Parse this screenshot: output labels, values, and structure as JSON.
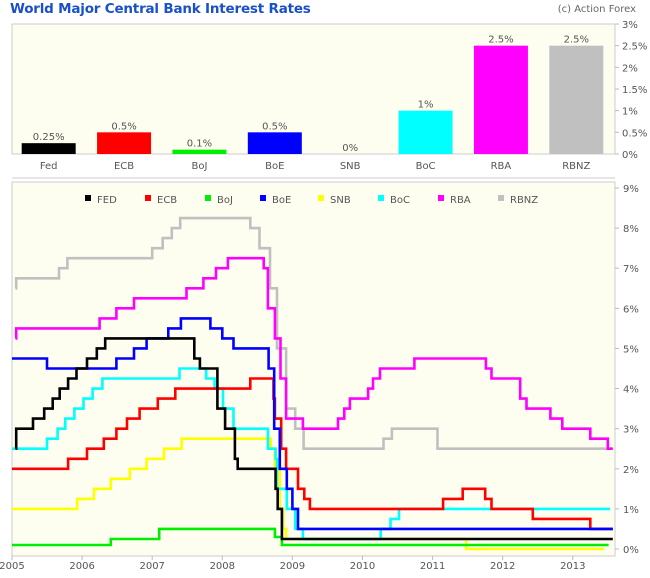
{
  "header": {
    "title": "World Major Central Bank Interest Rates",
    "credit": "(c) Action Forex"
  },
  "chart_data": [
    {
      "type": "bar",
      "title": "Current rates",
      "categories": [
        "Fed",
        "ECB",
        "BoJ",
        "BoE",
        "SNB",
        "BoC",
        "RBA",
        "RBNZ"
      ],
      "values": [
        0.25,
        0.5,
        0.1,
        0.5,
        0,
        1,
        2.5,
        2.5
      ],
      "data_labels": [
        "0.25%",
        "0.5%",
        "0.1%",
        "0.5%",
        "0%",
        "1%",
        "2.5%",
        "2.5%"
      ],
      "colors": [
        "#000000",
        "#ff0000",
        "#00ee00",
        "#0000ff",
        "#ffff00",
        "#00ffff",
        "#ff00ff",
        "#c0c0c0"
      ],
      "ylim": [
        0,
        3
      ],
      "yticks": [
        0,
        0.5,
        1,
        1.5,
        2,
        2.5,
        3
      ],
      "ytick_labels": [
        "0%",
        "0.5%",
        "1%",
        "1.5%",
        "2%",
        "2.5%",
        "3%"
      ],
      "axis_side": "right",
      "grid": false
    },
    {
      "type": "line",
      "step": true,
      "xlim": [
        2005,
        2013.9
      ],
      "ylim": [
        0,
        9
      ],
      "xticks": [
        2005,
        2006,
        2007,
        2008,
        2009,
        2010,
        2011,
        2012,
        2013
      ],
      "xtick_labels": [
        "2005",
        "2006",
        "2007",
        "2008",
        "2009",
        "2010",
        "2011",
        "2012",
        "2013"
      ],
      "yticks": [
        0,
        1,
        2,
        3,
        4,
        5,
        6,
        7,
        8,
        9
      ],
      "ytick_labels": [
        "0%",
        "1%",
        "2%",
        "3%",
        "4%",
        "5%",
        "6%",
        "7%",
        "8%",
        "9%"
      ],
      "legend_position": "top-center",
      "grid": false,
      "series": [
        {
          "name": "FED",
          "color": "#000000",
          "points": [
            [
              2005.05,
              2.5
            ],
            [
              2005.06,
              3.0
            ],
            [
              2005.3,
              3.25
            ],
            [
              2005.46,
              3.5
            ],
            [
              2005.58,
              3.75
            ],
            [
              2005.68,
              4.0
            ],
            [
              2005.8,
              4.25
            ],
            [
              2005.92,
              4.5
            ],
            [
              2006.07,
              4.75
            ],
            [
              2006.21,
              5.0
            ],
            [
              2006.33,
              5.25
            ],
            [
              2007.6,
              4.75
            ],
            [
              2007.68,
              4.5
            ],
            [
              2007.93,
              3.5
            ],
            [
              2008.04,
              3.0
            ],
            [
              2008.18,
              2.25
            ],
            [
              2008.22,
              2.0
            ],
            [
              2008.76,
              1.5
            ],
            [
              2008.79,
              1.0
            ],
            [
              2008.85,
              0.25
            ],
            [
              2013.57,
              0.25
            ]
          ]
        },
        {
          "name": "ECB",
          "color": "#ff0000",
          "points": [
            [
              2005.0,
              2.0
            ],
            [
              2005.8,
              2.25
            ],
            [
              2006.07,
              2.5
            ],
            [
              2006.31,
              2.75
            ],
            [
              2006.49,
              3.0
            ],
            [
              2006.64,
              3.25
            ],
            [
              2006.82,
              3.5
            ],
            [
              2007.08,
              3.75
            ],
            [
              2007.33,
              4.0
            ],
            [
              2008.4,
              4.25
            ],
            [
              2008.73,
              3.75
            ],
            [
              2008.75,
              3.25
            ],
            [
              2008.84,
              2.5
            ],
            [
              2008.91,
              2.0
            ],
            [
              2009.08,
              1.5
            ],
            [
              2009.17,
              1.25
            ],
            [
              2009.25,
              1.0
            ],
            [
              2011.15,
              1.25
            ],
            [
              2011.43,
              1.5
            ],
            [
              2011.75,
              1.25
            ],
            [
              2011.84,
              1.0
            ],
            [
              2012.43,
              0.75
            ],
            [
              2013.25,
              0.5
            ],
            [
              2013.57,
              0.5
            ]
          ]
        },
        {
          "name": "BoJ",
          "color": "#00ee00",
          "points": [
            [
              2005.0,
              0.1
            ],
            [
              2006.41,
              0.25
            ],
            [
              2007.1,
              0.5
            ],
            [
              2008.75,
              0.3
            ],
            [
              2008.85,
              0.1
            ],
            [
              2013.51,
              0.1
            ]
          ]
        },
        {
          "name": "BoE",
          "color": "#0000ff",
          "points": [
            [
              2005.0,
              4.75
            ],
            [
              2005.5,
              4.5
            ],
            [
              2006.49,
              4.75
            ],
            [
              2006.74,
              5.0
            ],
            [
              2006.92,
              5.25
            ],
            [
              2007.23,
              5.5
            ],
            [
              2007.41,
              5.75
            ],
            [
              2007.83,
              5.5
            ],
            [
              2008.0,
              5.25
            ],
            [
              2008.16,
              5.0
            ],
            [
              2008.66,
              4.5
            ],
            [
              2008.74,
              3.0
            ],
            [
              2008.82,
              2.0
            ],
            [
              2008.92,
              1.5
            ],
            [
              2009.0,
              1.0
            ],
            [
              2009.08,
              0.5
            ],
            [
              2013.57,
              0.5
            ]
          ]
        },
        {
          "name": "SNB",
          "color": "#ffff00",
          "points": [
            [
              2005.0,
              1.0
            ],
            [
              2005.93,
              1.25
            ],
            [
              2006.17,
              1.5
            ],
            [
              2006.41,
              1.75
            ],
            [
              2006.68,
              2.0
            ],
            [
              2006.92,
              2.25
            ],
            [
              2007.17,
              2.5
            ],
            [
              2007.42,
              2.75
            ],
            [
              2008.69,
              2.5
            ],
            [
              2008.75,
              2.0
            ],
            [
              2008.82,
              1.0
            ],
            [
              2008.87,
              0.5
            ],
            [
              2008.91,
              0.25
            ],
            [
              2011.48,
              0.0
            ],
            [
              2013.45,
              0.0
            ]
          ]
        },
        {
          "name": "BoC",
          "color": "#00ffff",
          "points": [
            [
              2005.0,
              2.5
            ],
            [
              2005.5,
              2.75
            ],
            [
              2005.65,
              3.0
            ],
            [
              2005.76,
              3.25
            ],
            [
              2005.89,
              3.5
            ],
            [
              2006.02,
              3.75
            ],
            [
              2006.15,
              4.0
            ],
            [
              2006.29,
              4.25
            ],
            [
              2007.39,
              4.5
            ],
            [
              2007.77,
              4.25
            ],
            [
              2007.89,
              4.0
            ],
            [
              2008.01,
              3.5
            ],
            [
              2008.16,
              3.0
            ],
            [
              2008.65,
              2.5
            ],
            [
              2008.76,
              2.25
            ],
            [
              2008.78,
              1.5
            ],
            [
              2008.92,
              1.0
            ],
            [
              2009.04,
              0.5
            ],
            [
              2009.15,
              0.25
            ],
            [
              2010.26,
              0.5
            ],
            [
              2010.4,
              0.75
            ],
            [
              2010.52,
              1.0
            ],
            [
              2013.53,
              1.0
            ]
          ]
        },
        {
          "name": "RBA",
          "color": "#ff00ff",
          "points": [
            [
              2005.05,
              5.25
            ],
            [
              2005.06,
              5.5
            ],
            [
              2006.25,
              5.75
            ],
            [
              2006.49,
              6.0
            ],
            [
              2006.74,
              6.25
            ],
            [
              2007.49,
              6.5
            ],
            [
              2007.73,
              6.75
            ],
            [
              2007.91,
              7.0
            ],
            [
              2008.08,
              7.25
            ],
            [
              2008.59,
              7.0
            ],
            [
              2008.65,
              6.0
            ],
            [
              2008.75,
              5.25
            ],
            [
              2008.83,
              4.25
            ],
            [
              2008.91,
              3.25
            ],
            [
              2009.15,
              3.0
            ],
            [
              2009.65,
              3.25
            ],
            [
              2009.74,
              3.5
            ],
            [
              2009.82,
              3.75
            ],
            [
              2010.08,
              4.0
            ],
            [
              2010.15,
              4.25
            ],
            [
              2010.25,
              4.5
            ],
            [
              2010.74,
              4.75
            ],
            [
              2011.76,
              4.5
            ],
            [
              2011.84,
              4.25
            ],
            [
              2012.25,
              3.75
            ],
            [
              2012.34,
              3.5
            ],
            [
              2012.68,
              3.25
            ],
            [
              2012.85,
              3.0
            ],
            [
              2013.25,
              2.75
            ],
            [
              2013.5,
              2.5
            ],
            [
              2013.57,
              2.5
            ]
          ]
        },
        {
          "name": "RBNZ",
          "color": "#c0c0c0",
          "points": [
            [
              2005.05,
              6.5
            ],
            [
              2005.06,
              6.75
            ],
            [
              2005.67,
              7.0
            ],
            [
              2005.79,
              7.25
            ],
            [
              2007.0,
              7.5
            ],
            [
              2007.15,
              7.75
            ],
            [
              2007.28,
              8.0
            ],
            [
              2007.4,
              8.25
            ],
            [
              2008.4,
              8.0
            ],
            [
              2008.53,
              7.5
            ],
            [
              2008.68,
              6.5
            ],
            [
              2008.78,
              5.0
            ],
            [
              2008.91,
              3.5
            ],
            [
              2009.04,
              3.0
            ],
            [
              2009.16,
              2.5
            ],
            [
              2010.3,
              2.75
            ],
            [
              2010.42,
              3.0
            ],
            [
              2011.07,
              2.5
            ],
            [
              2013.57,
              2.5
            ]
          ]
        }
      ]
    }
  ]
}
